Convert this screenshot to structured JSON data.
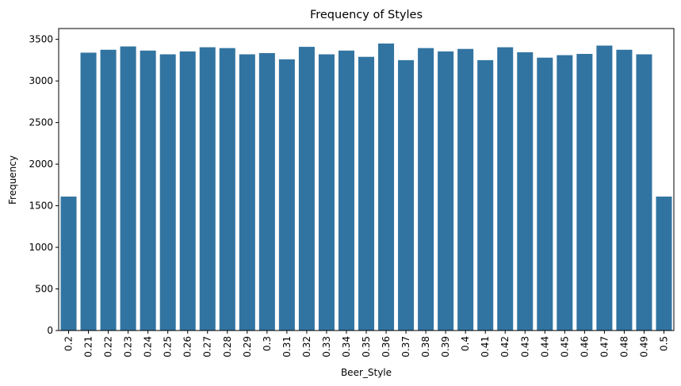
{
  "chart_data": {
    "type": "bar",
    "title": "Frequency of Styles",
    "xlabel": "Beer_Style",
    "ylabel": "Frequency",
    "ylim": [
      0,
      3630
    ],
    "yticks": [
      0,
      500,
      1000,
      1500,
      2000,
      2500,
      3000,
      3500
    ],
    "bar_color": "#3274a1",
    "grid": false,
    "categories": [
      "0.2",
      "0.21",
      "0.22",
      "0.23",
      "0.24",
      "0.25",
      "0.26",
      "0.27",
      "0.28",
      "0.29",
      "0.3",
      "0.31",
      "0.32",
      "0.33",
      "0.34",
      "0.35",
      "0.36",
      "0.37",
      "0.38",
      "0.39",
      "0.4",
      "0.41",
      "0.42",
      "0.43",
      "0.44",
      "0.45",
      "0.46",
      "0.47",
      "0.48",
      "0.49",
      "0.5"
    ],
    "values": [
      1610,
      3340,
      3375,
      3415,
      3365,
      3320,
      3355,
      3405,
      3395,
      3320,
      3335,
      3260,
      3410,
      3320,
      3365,
      3290,
      3450,
      3250,
      3395,
      3355,
      3385,
      3250,
      3405,
      3345,
      3280,
      3310,
      3325,
      3425,
      3375,
      3320,
      1610
    ]
  }
}
